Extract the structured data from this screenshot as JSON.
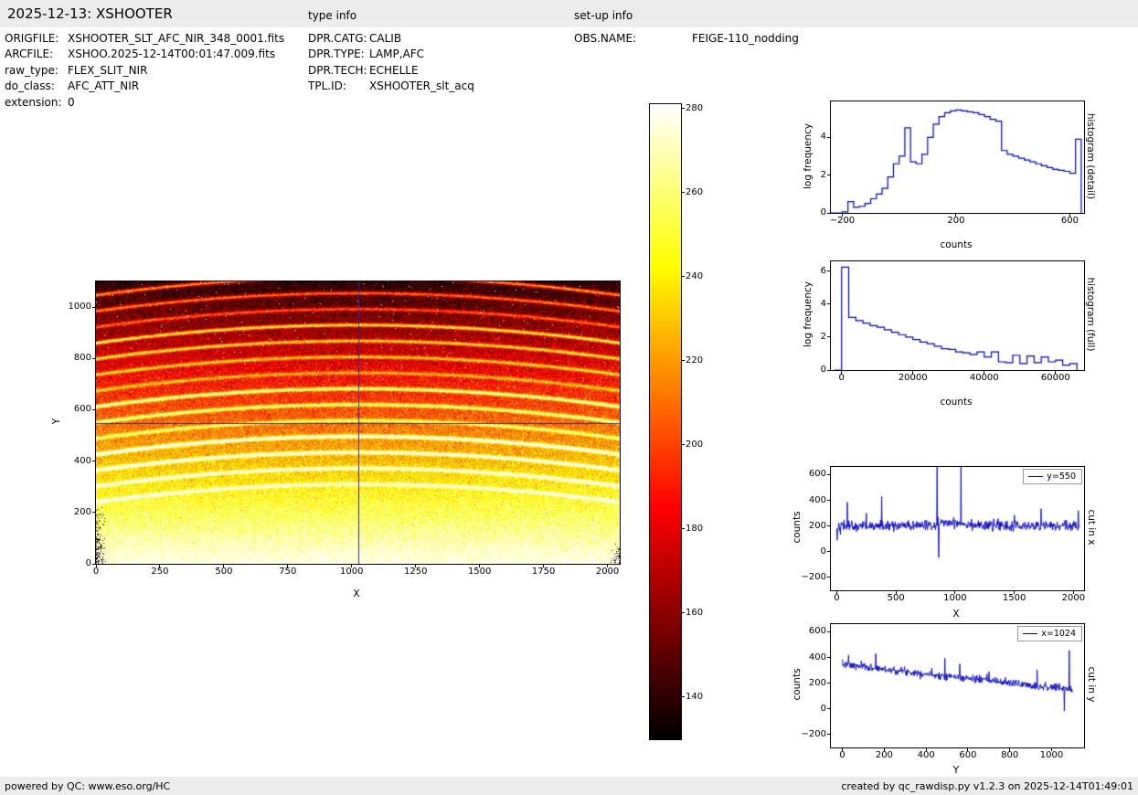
{
  "header": {
    "title": "2025-12-13: XSHOOTER",
    "type_info_label": "type info",
    "setup_info_label": "set-up info"
  },
  "metadata": {
    "left": [
      {
        "label": "ORIGFILE:",
        "value": "XSHOOTER_SLT_AFC_NIR_348_0001.fits"
      },
      {
        "label": "ARCFILE:",
        "value": "XSHOO.2025-12-14T00:01:47.009.fits"
      },
      {
        "label": "raw_type:",
        "value": "FLEX_SLIT_NIR"
      },
      {
        "label": "do_class:",
        "value": "AFC_ATT_NIR"
      },
      {
        "label": "extension:",
        "value": "0"
      }
    ],
    "middle": [
      {
        "label": "DPR.CATG:",
        "value": "CALIB"
      },
      {
        "label": "DPR.TYPE:",
        "value": "LAMP,AFC"
      },
      {
        "label": "DPR.TECH:",
        "value": "ECHELLE"
      },
      {
        "label": "TPL.ID:",
        "value": "XSHOOTER_slt_acq"
      }
    ],
    "right": [
      {
        "label": "OBS.NAME:",
        "value": "FEIGE-110_nodding"
      }
    ]
  },
  "footer": {
    "left": "powered by QC: www.eso.org/HC",
    "right": "created by qc_rawdisp.py v1.2.3 on 2025-12-14T01:49:01"
  },
  "chart_data": [
    {
      "id": "raw-image",
      "type": "heatmap",
      "xlabel": "X",
      "ylabel": "Y",
      "xlim": [
        0,
        2048
      ],
      "ylim": [
        0,
        1100
      ],
      "xticks": [
        0,
        250,
        500,
        750,
        1000,
        1250,
        1500,
        1750,
        2000
      ],
      "yticks": [
        0,
        200,
        400,
        600,
        800,
        1000
      ],
      "colormap": "hot",
      "vmin": 130,
      "vmax": 281,
      "value_bottom": 281,
      "value_top": 138,
      "noise_sigma": 11,
      "crosshair": {
        "x": 1024,
        "y": 550,
        "color": "#2a2ab0"
      },
      "arcs": {
        "count": 14,
        "y_start": 240,
        "spacing": 62,
        "bow": 70,
        "sigma": 5,
        "boost_min": 45,
        "boost_max": 85
      },
      "corner_speckle": true
    },
    {
      "id": "colorbar",
      "type": "colorbar",
      "colormap": "hot",
      "vmin": 130,
      "vmax": 281,
      "ticks": [
        140,
        160,
        180,
        200,
        220,
        240,
        260,
        280
      ]
    },
    {
      "id": "histogram-detail",
      "type": "step",
      "xlabel": "counts",
      "ylabel": "log frequency",
      "right_label": "histogram (detail)",
      "color": "#0000cc",
      "xlim": [
        -240,
        650
      ],
      "ylim": [
        0,
        5.9
      ],
      "xticks": [
        -200,
        200,
        600
      ],
      "yticks": [
        0,
        2,
        4
      ],
      "bin_width": 20,
      "x": [
        -240,
        -220,
        -200,
        -180,
        -160,
        -140,
        -120,
        -100,
        -80,
        -60,
        -40,
        -20,
        0,
        20,
        40,
        60,
        80,
        100,
        120,
        140,
        160,
        180,
        200,
        220,
        240,
        260,
        280,
        300,
        320,
        340,
        360,
        380,
        400,
        420,
        440,
        460,
        480,
        500,
        520,
        540,
        560,
        580,
        600,
        620
      ],
      "y": [
        0,
        0,
        0.05,
        0.6,
        0.3,
        0.35,
        0.5,
        0.75,
        1.0,
        1.3,
        1.9,
        2.6,
        3.0,
        4.5,
        2.7,
        2.6,
        3.1,
        4.0,
        4.7,
        5.1,
        5.3,
        5.4,
        5.45,
        5.4,
        5.35,
        5.3,
        5.2,
        5.1,
        4.95,
        4.85,
        3.3,
        3.1,
        3.0,
        2.9,
        2.8,
        2.7,
        2.6,
        2.5,
        2.4,
        2.3,
        2.25,
        2.2,
        2.1,
        3.9
      ]
    },
    {
      "id": "histogram-full",
      "type": "step",
      "xlabel": "counts",
      "ylabel": "log frequency",
      "right_label": "histogram (full)",
      "color": "#0000cc",
      "xlim": [
        -3000,
        68000
      ],
      "ylim": [
        0,
        6.6
      ],
      "xticks": [
        0,
        20000,
        40000,
        60000
      ],
      "yticks": [
        0,
        2,
        4,
        6
      ],
      "bin_width": 2000,
      "x": [
        -2000,
        0,
        2000,
        4000,
        6000,
        8000,
        10000,
        12000,
        14000,
        16000,
        18000,
        20000,
        22000,
        24000,
        26000,
        28000,
        30000,
        32000,
        34000,
        36000,
        38000,
        40000,
        42000,
        44000,
        46000,
        48000,
        50000,
        52000,
        54000,
        56000,
        58000,
        60000,
        62000,
        64000
      ],
      "y": [
        0,
        6.25,
        3.2,
        3.0,
        2.85,
        2.7,
        2.6,
        2.45,
        2.3,
        2.15,
        2.0,
        1.85,
        1.7,
        1.6,
        1.45,
        1.3,
        1.25,
        1.1,
        1.05,
        0.95,
        1.1,
        0.8,
        1.1,
        0.5,
        0.45,
        0.9,
        0.4,
        0.85,
        0.45,
        0.8,
        0.5,
        0.6,
        0.3,
        0.4
      ]
    },
    {
      "id": "cut-in-x",
      "type": "line",
      "xlabel": "X",
      "ylabel": "counts",
      "right_label": "cut in x",
      "legend": "y=550",
      "color": "#0000cc",
      "xlim": [
        -50,
        2090
      ],
      "ylim": [
        -300,
        660
      ],
      "xticks": [
        0,
        500,
        1000,
        1500,
        2000
      ],
      "yticks": [
        -200,
        0,
        200,
        400,
        600
      ],
      "x_range": [
        0,
        2048
      ],
      "n_points": 600,
      "baseline": 200,
      "trend_end": 200,
      "noise_sigma": 20,
      "seed": 42,
      "bump": {
        "center": 980,
        "amp": 28,
        "width": 130
      },
      "spikes": [
        {
          "x": 2,
          "y": 90
        },
        {
          "x": 90,
          "y": 385
        },
        {
          "x": 250,
          "y": 300
        },
        {
          "x": 380,
          "y": 430
        },
        {
          "x": 848,
          "y": 720
        },
        {
          "x": 862,
          "y": -45
        },
        {
          "x": 1048,
          "y": 720
        },
        {
          "x": 1500,
          "y": 285
        },
        {
          "x": 1725,
          "y": 335
        },
        {
          "x": 2040,
          "y": 320
        }
      ]
    },
    {
      "id": "cut-in-y",
      "type": "line",
      "xlabel": "Y",
      "ylabel": "counts",
      "right_label": "cut in y",
      "legend": "x=1024",
      "color": "#0000cc",
      "xlim": [
        -55,
        1155
      ],
      "ylim": [
        -300,
        660
      ],
      "xticks": [
        0,
        200,
        400,
        600,
        800,
        1000
      ],
      "yticks": [
        -200,
        0,
        200,
        400,
        600
      ],
      "x_range": [
        0,
        1100
      ],
      "n_points": 560,
      "baseline": 345,
      "trend_end": 150,
      "noise_sigma": 15,
      "seed": 7,
      "spikes": [
        {
          "x": 30,
          "y": 420
        },
        {
          "x": 160,
          "y": 430
        },
        {
          "x": 360,
          "y": 300
        },
        {
          "x": 490,
          "y": 395
        },
        {
          "x": 560,
          "y": 350
        },
        {
          "x": 700,
          "y": 290
        },
        {
          "x": 930,
          "y": 305
        },
        {
          "x": 1060,
          "y": -15
        },
        {
          "x": 1085,
          "y": 455
        }
      ]
    }
  ]
}
